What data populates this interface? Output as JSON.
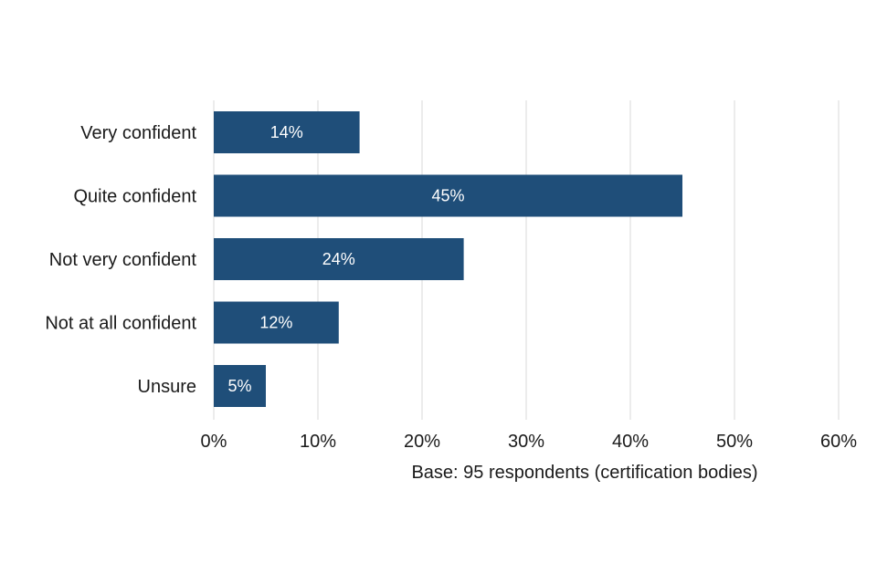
{
  "chart_data": {
    "type": "bar",
    "orientation": "horizontal",
    "categories": [
      "Very confident",
      "Quite confident",
      "Not very confident",
      "Not at all confident",
      "Unsure"
    ],
    "values": [
      14,
      45,
      24,
      12,
      5
    ],
    "value_labels": [
      "14%",
      "45%",
      "24%",
      "12%",
      "5%"
    ],
    "xlim": [
      0,
      60
    ],
    "x_ticks": [
      0,
      10,
      20,
      30,
      40,
      50,
      60
    ],
    "x_tick_labels": [
      "0%",
      "10%",
      "20%",
      "30%",
      "40%",
      "50%",
      "60%"
    ],
    "xlabel": "Base: 95 respondents (certification bodies)",
    "ylabel": "",
    "title": "",
    "grid": "vertical",
    "legend": "none",
    "bar_color": "#1f4e79",
    "grid_color": "#d9d9d9"
  }
}
